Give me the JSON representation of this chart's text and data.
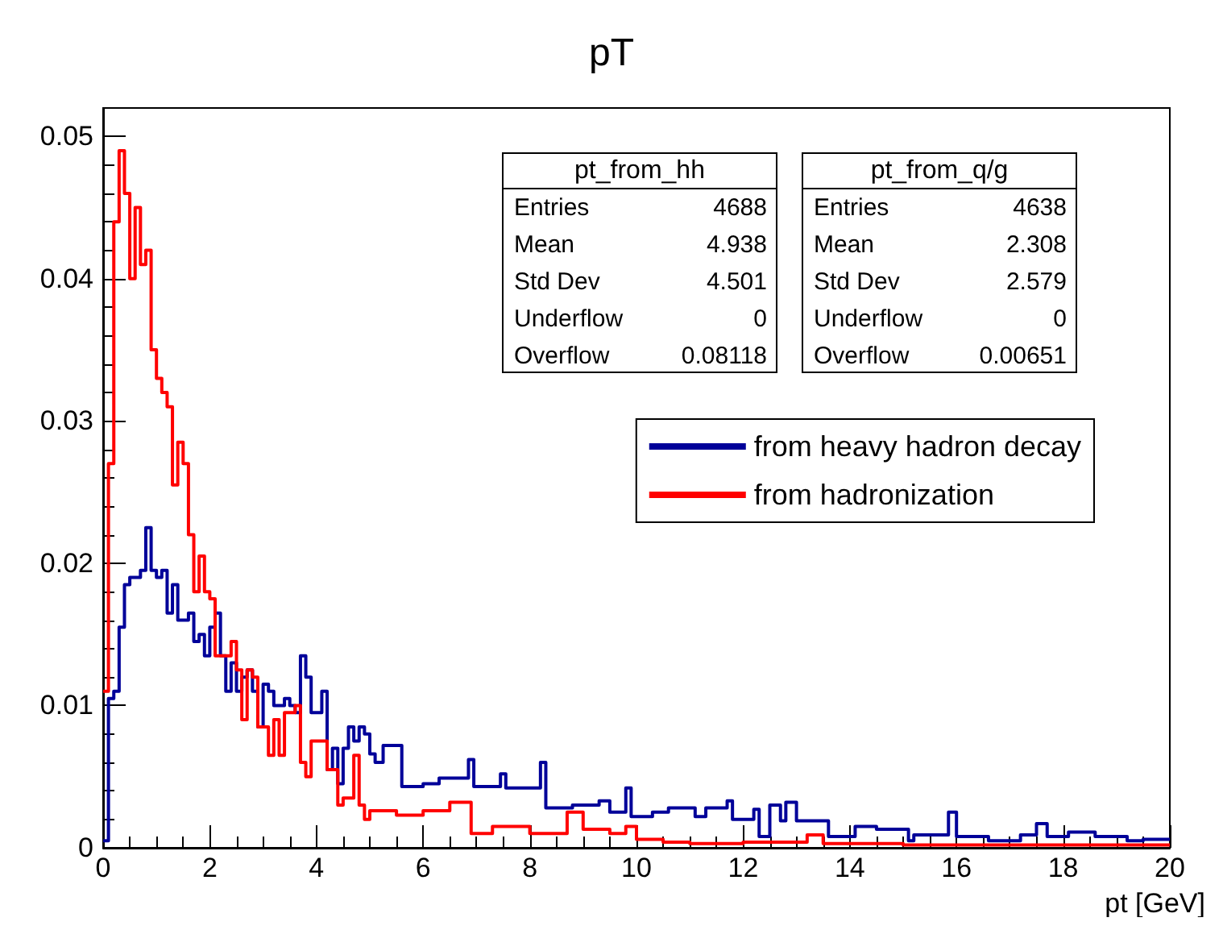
{
  "chart_data": {
    "type": "step",
    "title": "pT",
    "xlabel": "pt [GeV]",
    "xlim": [
      0,
      20
    ],
    "xticks": [
      0,
      2,
      4,
      6,
      8,
      10,
      12,
      14,
      16,
      18,
      20
    ],
    "ylim": [
      0,
      0.052
    ],
    "yticks": [
      0,
      0.01,
      0.02,
      0.03,
      0.04,
      0.05
    ],
    "grid": false,
    "legend": "top right",
    "marker": "none",
    "line_style": "solid",
    "annotations": [
      "pt_from_hh",
      "Entries 4688",
      "Mean 4.938",
      "Std Dev 4.501",
      "Underflow 0",
      "Overflow 0.08118",
      "pt_from_q/g",
      "Entries 4638",
      "Mean 2.308",
      "Std Dev 2.579",
      "Underflow 0",
      "Overflow 0.00651"
    ],
    "series": [
      {
        "name": "from heavy hadron decay",
        "color": "#000099",
        "x": [
          0,
          0.1,
          0.2,
          0.3,
          0.4,
          0.5,
          0.6,
          0.7,
          0.8,
          0.9,
          1.0,
          1.1,
          1.2,
          1.3,
          1.4,
          1.5,
          1.6,
          1.7,
          1.8,
          1.9,
          2.0,
          2.1,
          2.2,
          2.3,
          2.4,
          2.5,
          2.6,
          2.7,
          2.8,
          2.9,
          3.0,
          3.1,
          3.2,
          3.3,
          3.4,
          3.5,
          3.6,
          3.7,
          3.8,
          3.9,
          4.0,
          4.1,
          4.2,
          4.3,
          4.4,
          4.5,
          4.6,
          4.7,
          4.8,
          4.9,
          5.0,
          5.1,
          5.25,
          5.6,
          6.0,
          6.3,
          6.85,
          6.95,
          7.45,
          7.55,
          8.2,
          8.3,
          8.8,
          9.3,
          9.5,
          9.8,
          9.9,
          10.3,
          10.6,
          11.1,
          11.3,
          11.7,
          11.8,
          12.2,
          12.3,
          12.5,
          12.7,
          12.8,
          13.0,
          13.6,
          14.1,
          14.5,
          15.1,
          15.2,
          15.85,
          16.0,
          16.6,
          17.2,
          17.5,
          17.7,
          18.1,
          18.6,
          19.2,
          19.5,
          20
        ],
        "values": [
          0.0005,
          0.0105,
          0.011,
          0.0155,
          0.0185,
          0.019,
          0.019,
          0.0195,
          0.0225,
          0.0195,
          0.019,
          0.0195,
          0.0165,
          0.0185,
          0.016,
          0.016,
          0.0165,
          0.0145,
          0.015,
          0.0135,
          0.0155,
          0.0165,
          0.0135,
          0.011,
          0.013,
          0.011,
          0.012,
          0.0125,
          0.011,
          0.0085,
          0.0115,
          0.011,
          0.01,
          0.01,
          0.0105,
          0.01,
          0.0095,
          0.0135,
          0.012,
          0.0095,
          0.0095,
          0.011,
          0.0055,
          0.007,
          0.0045,
          0.007,
          0.0085,
          0.0075,
          0.0085,
          0.008,
          0.0066,
          0.006,
          0.0072,
          0.0043,
          0.0045,
          0.0049,
          0.0062,
          0.0043,
          0.0052,
          0.0042,
          0.006,
          0.0028,
          0.003,
          0.0033,
          0.0025,
          0.0042,
          0.0022,
          0.0025,
          0.0028,
          0.0022,
          0.0028,
          0.0033,
          0.002,
          0.0027,
          0.0008,
          0.003,
          0.0019,
          0.0032,
          0.0019,
          0.0008,
          0.0015,
          0.0013,
          0.0005,
          0.0009,
          0.0025,
          0.0008,
          0.0005,
          0.0009,
          0.0017,
          0.0008,
          0.0011,
          0.0008,
          0.0005,
          0.0006,
          0.0006
        ]
      },
      {
        "name": "from hadronization",
        "color": "#ff0000",
        "x": [
          0,
          0.1,
          0.2,
          0.3,
          0.4,
          0.5,
          0.6,
          0.7,
          0.8,
          0.9,
          1.0,
          1.1,
          1.2,
          1.3,
          1.4,
          1.5,
          1.6,
          1.7,
          1.8,
          1.9,
          2.0,
          2.1,
          2.2,
          2.3,
          2.4,
          2.5,
          2.6,
          2.7,
          2.8,
          2.9,
          3.0,
          3.1,
          3.2,
          3.3,
          3.4,
          3.5,
          3.6,
          3.7,
          3.8,
          3.9,
          4.0,
          4.1,
          4.2,
          4.3,
          4.4,
          4.5,
          4.6,
          4.7,
          4.8,
          4.9,
          5.0,
          5.5,
          6.0,
          6.5,
          6.9,
          7.3,
          8.0,
          8.7,
          9.0,
          9.5,
          9.8,
          10.0,
          10.5,
          11.0,
          12.0,
          13.2,
          13.5,
          15.0,
          20
        ],
        "values": [
          0.011,
          0.027,
          0.044,
          0.049,
          0.046,
          0.04,
          0.045,
          0.041,
          0.042,
          0.035,
          0.033,
          0.032,
          0.031,
          0.0255,
          0.0285,
          0.027,
          0.022,
          0.018,
          0.0205,
          0.018,
          0.0175,
          0.0135,
          0.0135,
          0.0135,
          0.0145,
          0.0125,
          0.009,
          0.0125,
          0.012,
          0.0085,
          0.0085,
          0.0065,
          0.009,
          0.0065,
          0.0095,
          0.0095,
          0.01,
          0.006,
          0.005,
          0.0075,
          0.0075,
          0.0075,
          0.0055,
          0.0055,
          0.003,
          0.0035,
          0.0035,
          0.0065,
          0.003,
          0.002,
          0.0026,
          0.0023,
          0.0026,
          0.0032,
          0.001,
          0.0015,
          0.001,
          0.0025,
          0.0013,
          0.001,
          0.0015,
          0.0006,
          0.0004,
          0.0003,
          0.0004,
          0.0009,
          0.0003,
          0.0002,
          0.0002
        ]
      }
    ]
  }
}
